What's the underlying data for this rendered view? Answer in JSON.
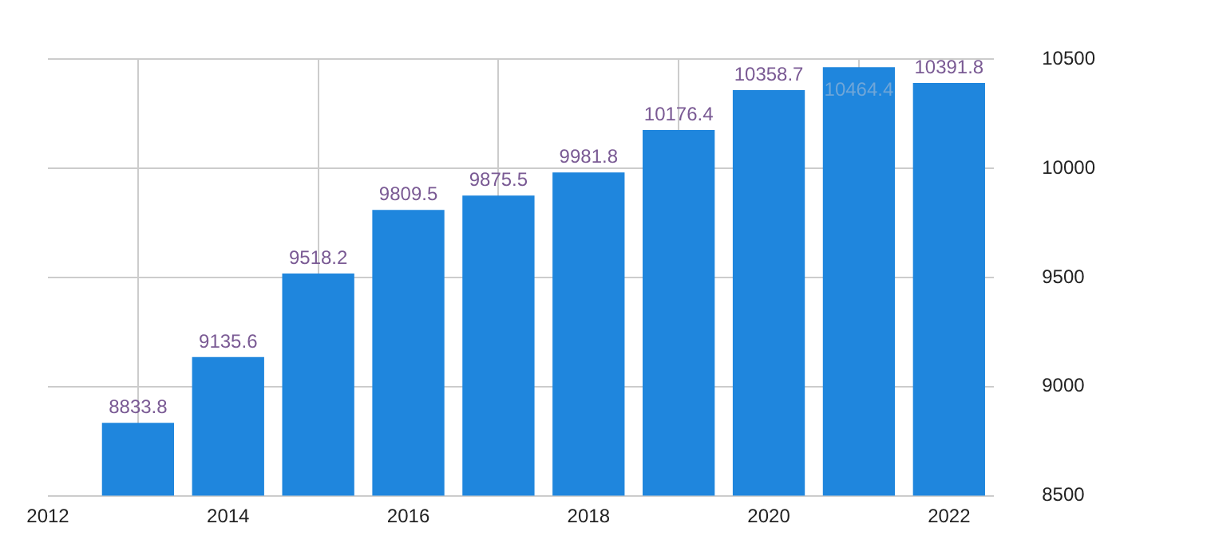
{
  "chart_data": {
    "type": "bar",
    "x": [
      2013,
      2014,
      2015,
      2016,
      2017,
      2018,
      2019,
      2020,
      2021,
      2022
    ],
    "values": [
      8833.8,
      9135.6,
      9518.2,
      9809.5,
      9875.5,
      9981.8,
      10176.4,
      10358.7,
      10464.4,
      10391.8
    ],
    "color": "#1f86dd",
    "xlim": [
      2012,
      2022.5
    ],
    "xticks": [
      2012,
      2014,
      2016,
      2018,
      2020,
      2022
    ],
    "ylim": [
      8500,
      10500
    ],
    "yticks": [
      8500,
      9000,
      9500,
      10000,
      10500
    ],
    "grid": true,
    "data_labels": true
  }
}
